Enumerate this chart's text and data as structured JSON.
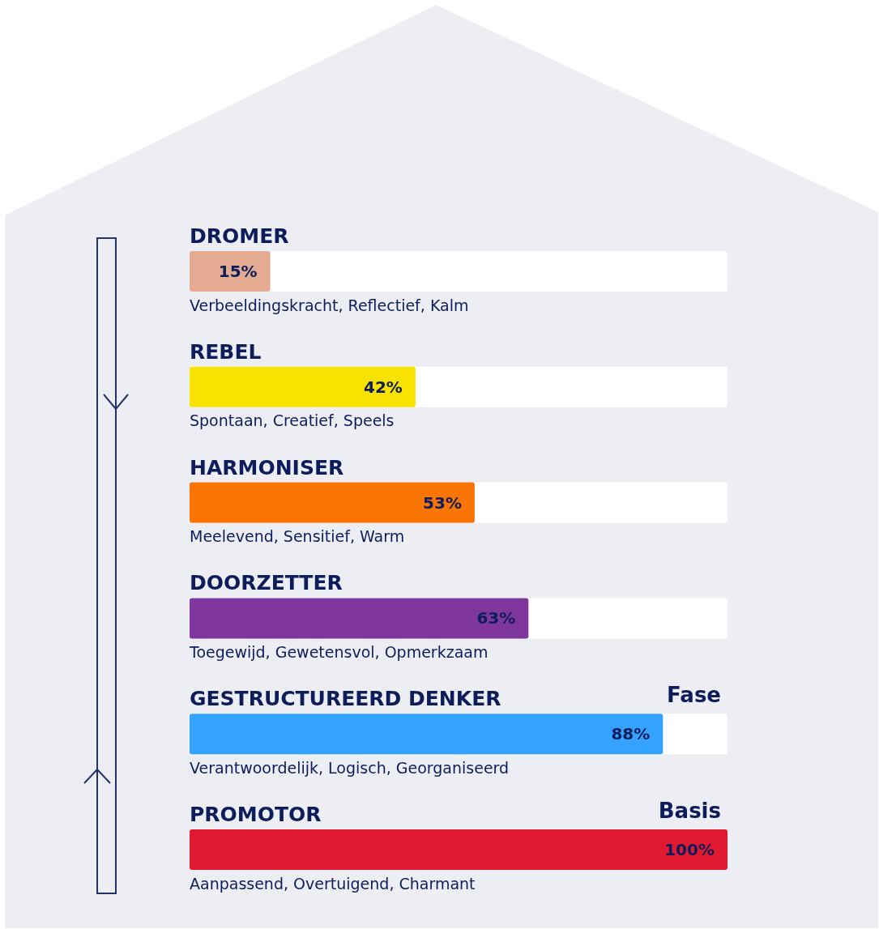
{
  "chart_data": {
    "type": "bar",
    "orientation": "horizontal",
    "categories": [
      "DROMER",
      "REBEL",
      "HARMONISER",
      "DOORZETTER",
      "GESTRUCTUREERD DENKER",
      "PROMOTOR"
    ],
    "values": [
      15,
      42,
      53,
      63,
      88,
      100
    ],
    "colors": [
      "#e5aa92",
      "#f7e200",
      "#fb7504",
      "#7f379e",
      "#33a3ff",
      "#e11a31"
    ],
    "value_labels": [
      "15%",
      "42%",
      "53%",
      "63%",
      "88%",
      "100%"
    ],
    "xlim": [
      0,
      100
    ],
    "tick_labels": "y",
    "annotations": [
      "Verbeeldingskracht, Reflectief, Kalm",
      "Spontaan, Creatief, Speels",
      "Meelevend, Sensitief, Warm",
      "Toegewijd, Gewetensvol, Opmerkzaam",
      "Verantwoordelijk, Logisch, Georganiseerd",
      "Aanpassend, Overtuigend, Charmant",
      "Fase",
      "Basis"
    ]
  }
}
